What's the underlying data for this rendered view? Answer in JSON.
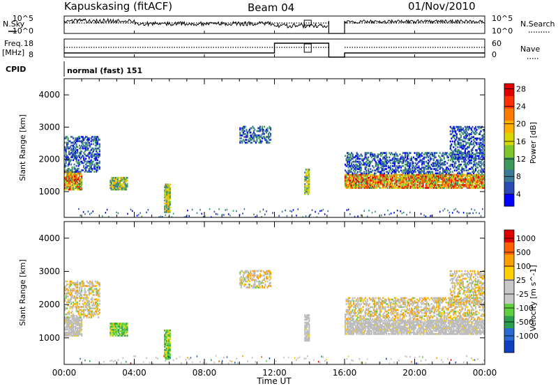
{
  "header": {
    "station": "Kapuskasing (fitACF)",
    "beam": "Beam 04",
    "date": "01/Nov/2010"
  },
  "strip": {
    "nsky_label": "N.Sky",
    "nsearch_label": "N.Search",
    "nsky_ticks": [
      "10^5",
      "10^0"
    ],
    "nsky_right_ticks": [
      "10^5",
      "10^0"
    ],
    "freq_label_1": "Freq.",
    "freq_label_2": "[MHz]",
    "freq_ticks": [
      "18",
      "8"
    ],
    "nave_ticks": [
      "60",
      "0"
    ],
    "nave_label": "Nave",
    "cpid_label": "CPID",
    "cpid_value": "normal (fast) 151"
  },
  "chart_data": [
    {
      "type": "heatmap",
      "panel": "power",
      "ylabel": "Slant Range [km]",
      "xlabel": "",
      "ylim": [
        200,
        4500
      ],
      "yticks": [
        1000,
        2000,
        3000,
        4000
      ],
      "xlim": [
        0,
        24
      ],
      "colorbar_label": "Power [dB]",
      "colorbar_ticks": [
        "4",
        "8",
        "12",
        "16",
        "20",
        "24",
        "28"
      ],
      "colorbar_colors": [
        "#0000ff",
        "#2a4bb5",
        "#3c7a96",
        "#3e9a5c",
        "#7fc62a",
        "#d8d800",
        "#ffb000",
        "#ff7a00",
        "#ff3000",
        "#e00000"
      ],
      "regions": [
        {
          "t": [
            0.0,
            1.0
          ],
          "r": [
            1050,
            1600
          ],
          "level": "high"
        },
        {
          "t": [
            0.0,
            2.0
          ],
          "r": [
            1600,
            2700
          ],
          "level": "low"
        },
        {
          "t": [
            2.6,
            3.6
          ],
          "r": [
            1050,
            1450
          ],
          "level": "mid"
        },
        {
          "t": [
            5.7,
            6.0
          ],
          "r": [
            350,
            1250
          ],
          "level": "mid"
        },
        {
          "t": [
            10.0,
            11.8
          ],
          "r": [
            2500,
            3000
          ],
          "level": "low"
        },
        {
          "t": [
            13.7,
            14.0
          ],
          "r": [
            900,
            1700
          ],
          "level": "mid"
        },
        {
          "t": [
            16.0,
            24.0
          ],
          "r": [
            1100,
            1550
          ],
          "level": "high"
        },
        {
          "t": [
            16.0,
            24.0
          ],
          "r": [
            1550,
            2200
          ],
          "level": "low"
        },
        {
          "t": [
            22.0,
            24.0
          ],
          "r": [
            2000,
            3000
          ],
          "level": "low"
        }
      ]
    },
    {
      "type": "heatmap",
      "panel": "velocity",
      "ylabel": "Slant Range [km]",
      "xlabel": "Time UT",
      "ylim": [
        200,
        4500
      ],
      "yticks": [
        1000,
        2000,
        3000,
        4000
      ],
      "xlim": [
        0,
        24
      ],
      "xticks": [
        "00:00",
        "04:00",
        "08:00",
        "12:00",
        "16:00",
        "20:00",
        "00:00"
      ],
      "colorbar_label": "Velocity [m s^-1]",
      "colorbar_ticks": [
        "1000",
        "500",
        "100",
        "25",
        "-25",
        "-100",
        "-500",
        "-1000"
      ],
      "colorbar_colors": [
        "#1040c0",
        "#2a6ad0",
        "#2aa050",
        "#60d040",
        "#c8c8c8",
        "#c8c8c8",
        "#ffd000",
        "#ffa000",
        "#ff6000",
        "#e00000"
      ],
      "ground_scatter_color": "#bdbdbd"
    }
  ]
}
